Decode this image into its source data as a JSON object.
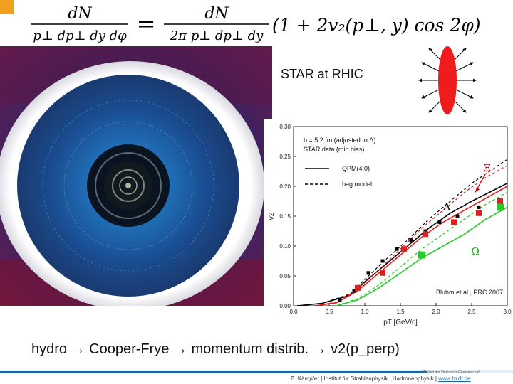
{
  "slide": {
    "title_label": "STAR at RHIC",
    "caption": "hydro → Cooper-Frye → momentum distrib. → v2(p_perp)",
    "citation": "Bluhm et al., PRC 2007",
    "footer_small": "Mitglied der Helmholtz-Gemeinschaft",
    "footer_main": "B. Kämpfer | Institut für Strahlenphysik | Hadronenphysik | ",
    "footer_link": "www.hzdr.de",
    "accent_color": "#f0a020",
    "footer_color": "#1c64a6"
  },
  "formula": {
    "lhs_num": "dN",
    "lhs_den": "p⊥ dp⊥ dy dφ",
    "equals": "=",
    "rhs_num": "dN",
    "rhs_den": "2π p⊥ dp⊥ dy",
    "rhs_tail": "(1 + 2v₂(p⊥, y) cos 2φ)"
  },
  "chart_data": {
    "type": "line",
    "xlabel": "pT [GeV/c]",
    "ylabel": "v2",
    "xlim": [
      0,
      3.0
    ],
    "ylim": [
      0,
      0.3
    ],
    "xticks": [
      "0.0",
      "0.5",
      "1.0",
      "1.5",
      "2.0",
      "2.5",
      "3.0"
    ],
    "yticks": [
      "0.00",
      "0.05",
      "0.10",
      "0.15",
      "0.20",
      "0.25",
      "0.30"
    ],
    "legend_header": [
      "b = 5.2 fm (adjusted to Λ)",
      "STAR data (min.bias)"
    ],
    "legend": [
      {
        "label": "QPM(4.0)",
        "style": "solid"
      },
      {
        "label": "bag model",
        "style": "dashed"
      }
    ],
    "annotations": [
      {
        "text": "Ξ",
        "x": 2.72,
        "y": 0.225,
        "color": "#c00000"
      },
      {
        "text": "Λ",
        "x": 2.15,
        "y": 0.16,
        "color": "#000000"
      },
      {
        "text": "Ω",
        "x": 2.55,
        "y": 0.085,
        "color": "#00aa00"
      }
    ],
    "series": [
      {
        "particle": "lambda",
        "color": "#000000",
        "marker": "square",
        "marker_size": 5,
        "points": [
          [
            0.65,
            0.01
          ],
          [
            0.85,
            0.025
          ],
          [
            1.05,
            0.055
          ],
          [
            1.25,
            0.075
          ],
          [
            1.45,
            0.095
          ],
          [
            1.65,
            0.11
          ],
          [
            1.85,
            0.125
          ],
          [
            2.05,
            0.14
          ],
          [
            2.3,
            0.15
          ],
          [
            2.6,
            0.165
          ],
          [
            2.9,
            0.175
          ]
        ],
        "curve_solid": [
          [
            0.05,
            0.0
          ],
          [
            0.4,
            0.004
          ],
          [
            0.8,
            0.018
          ],
          [
            1.0,
            0.04
          ],
          [
            1.3,
            0.07
          ],
          [
            1.6,
            0.1
          ],
          [
            1.9,
            0.13
          ],
          [
            2.2,
            0.155
          ],
          [
            2.5,
            0.175
          ],
          [
            3.0,
            0.205
          ]
        ],
        "curve_dashed": [
          [
            0.05,
            0.0
          ],
          [
            0.4,
            0.004
          ],
          [
            0.8,
            0.02
          ],
          [
            1.0,
            0.044
          ],
          [
            1.3,
            0.078
          ],
          [
            1.6,
            0.11
          ],
          [
            1.9,
            0.145
          ],
          [
            2.2,
            0.175
          ],
          [
            2.5,
            0.205
          ],
          [
            3.0,
            0.245
          ]
        ]
      },
      {
        "particle": "xi",
        "color": "#e02020",
        "marker": "square",
        "marker_size": 8,
        "points": [
          [
            0.9,
            0.03
          ],
          [
            1.25,
            0.055
          ],
          [
            1.55,
            0.095
          ],
          [
            1.85,
            0.12
          ],
          [
            2.25,
            0.14
          ],
          [
            2.6,
            0.155
          ],
          [
            2.9,
            0.175
          ]
        ],
        "curve_solid": [
          [
            0.3,
            0.0
          ],
          [
            0.6,
            0.005
          ],
          [
            0.9,
            0.025
          ],
          [
            1.2,
            0.055
          ],
          [
            1.5,
            0.085
          ],
          [
            1.8,
            0.115
          ],
          [
            2.1,
            0.14
          ],
          [
            2.4,
            0.16
          ],
          [
            2.7,
            0.18
          ],
          [
            3.0,
            0.2
          ]
        ],
        "curve_dashed": [
          [
            0.3,
            0.0
          ],
          [
            0.6,
            0.006
          ],
          [
            0.9,
            0.028
          ],
          [
            1.2,
            0.06
          ],
          [
            1.5,
            0.095
          ],
          [
            1.8,
            0.13
          ],
          [
            2.1,
            0.16
          ],
          [
            2.4,
            0.19
          ],
          [
            2.7,
            0.215
          ],
          [
            3.0,
            0.235
          ]
        ]
      },
      {
        "particle": "omega",
        "color": "#22cc22",
        "marker": "square",
        "marker_size": 10,
        "points": [
          [
            1.8,
            0.085
          ],
          [
            2.9,
            0.165
          ]
        ],
        "curve_solid": [
          [
            0.6,
            0.0
          ],
          [
            0.9,
            0.01
          ],
          [
            1.2,
            0.03
          ],
          [
            1.5,
            0.055
          ],
          [
            1.8,
            0.08
          ],
          [
            2.1,
            0.1
          ],
          [
            2.4,
            0.12
          ],
          [
            2.7,
            0.145
          ],
          [
            3.0,
            0.165
          ]
        ],
        "curve_dashed": [
          [
            0.6,
            0.0
          ],
          [
            0.9,
            0.012
          ],
          [
            1.2,
            0.035
          ],
          [
            1.5,
            0.065
          ],
          [
            1.8,
            0.095
          ],
          [
            2.1,
            0.12
          ],
          [
            2.4,
            0.145
          ],
          [
            2.7,
            0.17
          ],
          [
            3.0,
            0.19
          ]
        ]
      }
    ]
  }
}
